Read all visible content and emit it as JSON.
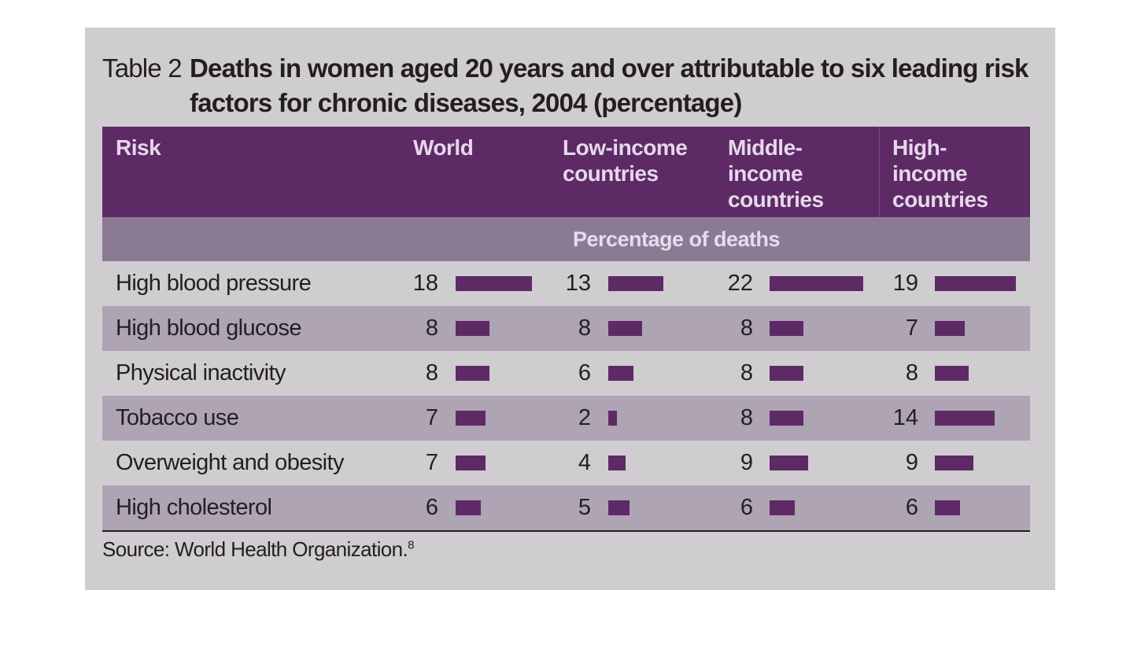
{
  "title": {
    "label": "Table 2",
    "text": "Deaths in women aged 20 years and over attributable to six leading risk factors for chronic diseases, 2004 (percentage)"
  },
  "headers": {
    "risk": "Risk",
    "world": "World",
    "low": "Low-income countries",
    "middle": "Middle-income countries",
    "high": "High-income countries"
  },
  "subheader": "Percentage of deaths",
  "source": {
    "text": "Source: World Health Organization.",
    "ref": "8"
  },
  "colors": {
    "header": "#5d2a66",
    "bar": "#5d2a66",
    "band": "#aea4b4"
  },
  "chart_data": {
    "type": "table",
    "title": "Deaths in women aged 20 years and over attributable to six leading risk factors for chronic diseases, 2004 (percentage)",
    "columns": [
      "World",
      "Low-income countries",
      "Middle-income countries",
      "High-income countries"
    ],
    "unit": "Percentage of deaths",
    "rows": [
      {
        "risk": "High blood pressure",
        "values": [
          18,
          13,
          22,
          19
        ]
      },
      {
        "risk": "High blood glucose",
        "values": [
          8,
          8,
          8,
          7
        ]
      },
      {
        "risk": "Physical inactivity",
        "values": [
          8,
          6,
          8,
          8
        ]
      },
      {
        "risk": "Tobacco use",
        "values": [
          7,
          2,
          8,
          14
        ]
      },
      {
        "risk": "Overweight and obesity",
        "values": [
          7,
          4,
          9,
          9
        ]
      },
      {
        "risk": "High cholesterol",
        "values": [
          6,
          5,
          6,
          6
        ]
      }
    ]
  }
}
